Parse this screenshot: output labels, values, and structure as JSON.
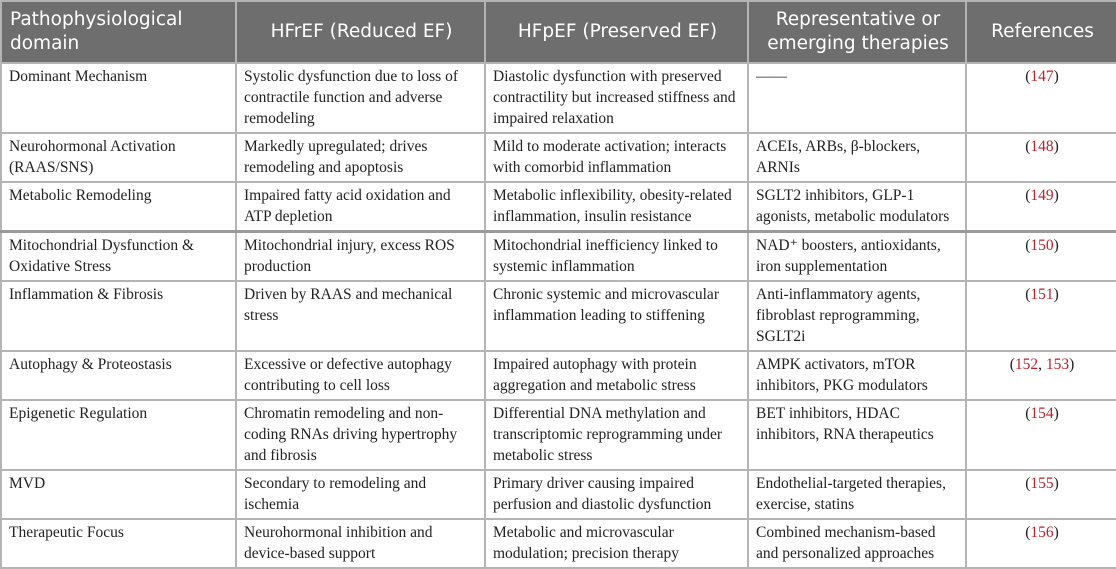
{
  "headers": [
    "Pathophysiological domain",
    "HFrEF (Reduced EF)",
    "HFpEF (Preserved EF)",
    "Representative or emerging therapies",
    "References"
  ],
  "rows": [
    {
      "domain": "Dominant Mechanism",
      "hfref": "Systolic dysfunction due to loss of contractile function and adverse remodeling",
      "hfpef": "Diastolic dysfunction with preserved contractility but increased stiffness and impaired relaxation",
      "therapies": "——",
      "refs": [
        "147"
      ]
    },
    {
      "domain": "Neurohormonal Activation (RAAS/SNS)",
      "hfref": "Markedly upregulated; drives remodeling and apoptosis",
      "hfpef": "Mild to moderate activation; interacts with comorbid inflammation",
      "therapies": "ACEIs, ARBs, β-blockers, ARNIs",
      "refs": [
        "148"
      ]
    },
    {
      "domain": "Metabolic Remodeling",
      "hfref": "Impaired fatty acid oxidation and ATP depletion",
      "hfpef": "Metabolic inflexibility, obesity-related inflammation, insulin resistance",
      "therapies": "SGLT2 inhibitors, GLP-1 agonists, metabolic modulators",
      "refs": [
        "149"
      ]
    },
    {
      "domain": "Mitochondrial Dysfunction & Oxidative Stress",
      "hfref": "Mitochondrial injury, excess ROS production",
      "hfpef": "Mitochondrial inefficiency linked to systemic inflammation",
      "therapies": "NAD⁺ boosters, antioxidants, iron supplementation",
      "refs": [
        "150"
      ]
    },
    {
      "domain": "Inflammation & Fibrosis",
      "hfref": "Driven by RAAS and mechanical stress",
      "hfpef": "Chronic systemic and microvascular inflammation leading to stiffening",
      "therapies": "Anti-inflammatory agents, fibroblast reprogramming, SGLT2i",
      "refs": [
        "151"
      ]
    },
    {
      "domain": "Autophagy & Proteostasis",
      "hfref": "Excessive or defective autophagy contributing to cell loss",
      "hfpef": "Impaired autophagy with protein aggregation and metabolic stress",
      "therapies": "AMPK activators, mTOR inhibitors, PKG modulators",
      "refs": [
        "152",
        "153"
      ]
    },
    {
      "domain": "Epigenetic Regulation",
      "hfref": "Chromatin remodeling and non-coding RNAs driving hypertrophy and fibrosis",
      "hfpef": "Differential DNA methylation and transcriptomic reprogramming under metabolic stress",
      "therapies": "BET inhibitors, HDAC inhibitors, RNA therapeutics",
      "refs": [
        "154"
      ]
    },
    {
      "domain": "MVD",
      "hfref": "Secondary to remodeling and ischemia",
      "hfpef": "Primary driver causing impaired perfusion and diastolic dysfunction",
      "therapies": "Endothelial-targeted therapies, exercise, statins",
      "refs": [
        "155"
      ]
    },
    {
      "domain": "Therapeutic Focus",
      "hfref": "Neurohormonal inhibition and device-based support",
      "hfpef": "Metabolic and microvascular modulation; precision therapy",
      "therapies": "Combined mechanism-based and personalized approaches",
      "refs": [
        "156"
      ]
    }
  ],
  "colors": {
    "header_bg": "#6e6e6e",
    "reference_link": "#c0202a"
  }
}
